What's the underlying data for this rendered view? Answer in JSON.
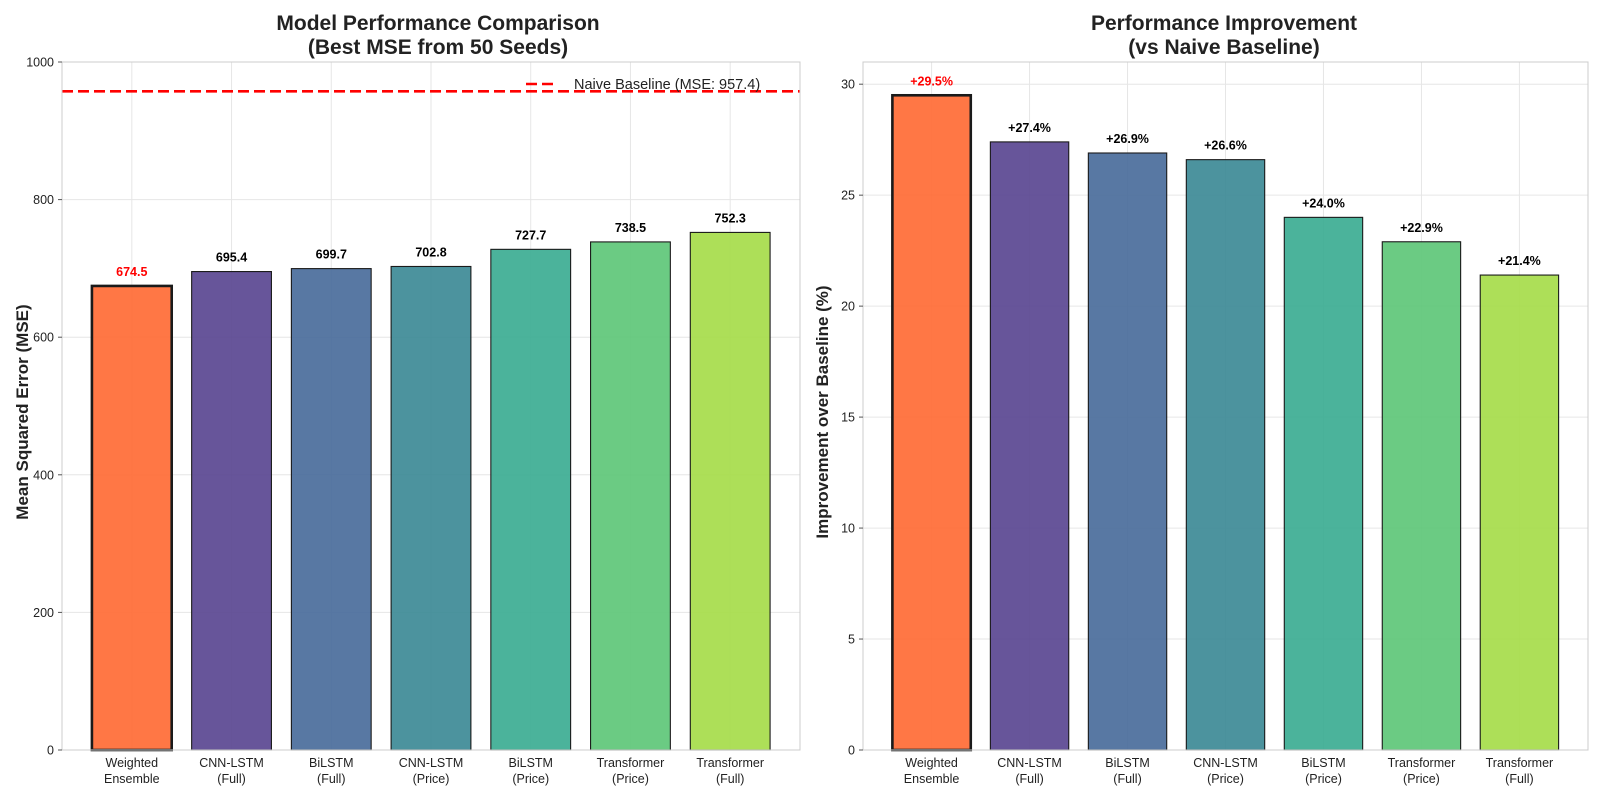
{
  "chart_data": [
    {
      "type": "bar",
      "title": [
        "Model Performance Comparison",
        "(Best MSE from 50 Seeds)"
      ],
      "ylabel": "Mean Squared Error (MSE)",
      "xlabel": "",
      "ylim": [
        0,
        1000
      ],
      "yticks": [
        0,
        200,
        400,
        600,
        800,
        1000
      ],
      "grid": true,
      "categories": [
        [
          "Weighted",
          "Ensemble"
        ],
        [
          "CNN-LSTM",
          "(Full)"
        ],
        [
          "BiLSTM",
          "(Full)"
        ],
        [
          "CNN-LSTM",
          "(Price)"
        ],
        [
          "BiLSTM",
          "(Price)"
        ],
        [
          "Transformer",
          "(Price)"
        ],
        [
          "Transformer",
          "(Full)"
        ]
      ],
      "values": [
        674.5,
        695.4,
        699.7,
        702.8,
        727.7,
        738.5,
        752.3
      ],
      "value_labels": [
        "674.5",
        "695.4",
        "699.7",
        "702.8",
        "727.7",
        "738.5",
        "752.3"
      ],
      "colors": [
        "#ff6b35",
        "#5a4691",
        "#4a6c9b",
        "#3d8a96",
        "#3cac93",
        "#5ec778",
        "#a6dc4a"
      ],
      "highlight_index": 0,
      "highlight_label_color": "#ff0000",
      "baseline": {
        "value": 957.4,
        "label": "Naive Baseline (MSE: 957.4)",
        "color": "#ff0000",
        "style": "dashed"
      },
      "legend_position": "top-right"
    },
    {
      "type": "bar",
      "title": [
        "Performance Improvement",
        "(vs Naive Baseline)"
      ],
      "ylabel": "Improvement over Baseline (%)",
      "xlabel": "",
      "ylim": [
        0,
        31
      ],
      "yticks": [
        0,
        5,
        10,
        15,
        20,
        25,
        30
      ],
      "grid": true,
      "categories": [
        [
          "Weighted",
          "Ensemble"
        ],
        [
          "CNN-LSTM",
          "(Full)"
        ],
        [
          "BiLSTM",
          "(Full)"
        ],
        [
          "CNN-LSTM",
          "(Price)"
        ],
        [
          "BiLSTM",
          "(Price)"
        ],
        [
          "Transformer",
          "(Price)"
        ],
        [
          "Transformer",
          "(Full)"
        ]
      ],
      "values": [
        29.5,
        27.4,
        26.9,
        26.6,
        24.0,
        22.9,
        21.4
      ],
      "value_labels": [
        "+29.5%",
        "+27.4%",
        "+26.9%",
        "+26.6%",
        "+24.0%",
        "+22.9%",
        "+21.4%"
      ],
      "colors": [
        "#ff6b35",
        "#5a4691",
        "#4a6c9b",
        "#3d8a96",
        "#3cac93",
        "#5ec778",
        "#a6dc4a"
      ],
      "highlight_index": 0,
      "highlight_label_color": "#ff0000"
    }
  ]
}
